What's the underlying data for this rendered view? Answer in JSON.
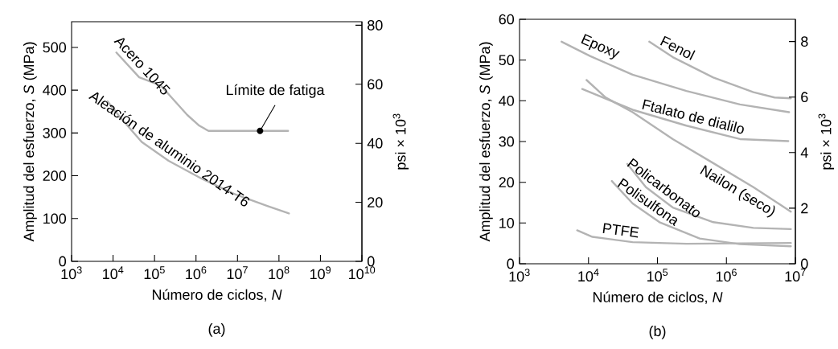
{
  "chart_data": [
    {
      "type": "line",
      "log": "x",
      "xlabel": "Número de ciclos, *N*",
      "ylabel": "Amplitud del esfuerzo, *S* (MPa)",
      "y2label": "psi × 10$^{3}$",
      "xlim": [
        1000,
        10000000000
      ],
      "xticks": [
        {
          "value": 1000,
          "label": "10$^{3}$"
        },
        {
          "value": 10000,
          "label": "10$^{4}$"
        },
        {
          "value": 100000,
          "label": "10$^{5}$"
        },
        {
          "value": 1000000,
          "label": "10$^{6}$"
        },
        {
          "value": 10000000,
          "label": "10$^{7}$"
        },
        {
          "value": 100000000,
          "label": "10$^{8}$"
        },
        {
          "value": 1000000000,
          "label": "10$^{9}$"
        },
        {
          "value": 10000000000,
          "label": "10$^{10}$"
        }
      ],
      "ylim": [
        0,
        560
      ],
      "yticks": [
        0,
        100,
        200,
        300,
        400,
        500
      ],
      "y2lim": [
        0,
        81.2
      ],
      "y2ticks": [
        0,
        20,
        40,
        60,
        80
      ],
      "series": [
        {
          "name": "Acero 1045",
          "color": "#b3b3b3",
          "x": [
            12000,
            42700,
            141000,
            617000,
            1200000,
            2000000,
            166000000
          ],
          "values": [
            488,
            430,
            411,
            342,
            317,
            305,
            305
          ]
        },
        {
          "name": "Aleación de aluminio 2014-T6",
          "color": "#b3b3b3",
          "x": [
            7360,
            15100,
            49000,
            219000,
            1320000,
            9100000,
            54000000,
            174000000
          ],
          "values": [
            374,
            336,
            279,
            235,
            194,
            156,
            129,
            112
          ]
        }
      ],
      "annotations": [
        {
          "text": "Límite de fatiga",
          "x": 35000000,
          "y": 305
        },
        "(a)"
      ]
    },
    {
      "type": "line",
      "log": "x",
      "xlabel": "Número de ciclos, *N*",
      "ylabel": "Amplitud del esfuerzo, *S* (MPa)",
      "y2label": "psi × 10$^{3}$",
      "xlim": [
        1000,
        10000000
      ],
      "xticks": [
        {
          "value": 1000,
          "label": "10$^{3}$"
        },
        {
          "value": 10000,
          "label": "10$^{4}$"
        },
        {
          "value": 100000,
          "label": "10$^{5}$"
        },
        {
          "value": 1000000,
          "label": "10$^{6}$"
        },
        {
          "value": 10000000,
          "label": "10$^{7}$"
        }
      ],
      "ylim": [
        0,
        60
      ],
      "yticks": [
        0,
        10,
        20,
        30,
        40,
        50,
        60
      ],
      "y2lim": [
        0,
        8.8
      ],
      "y2ticks": [
        0,
        2,
        4,
        6,
        8
      ],
      "series": [
        {
          "name": "Epoxy",
          "color": "#b3b3b3",
          "x": [
            4070,
            10500,
            43600,
            263000,
            1570000,
            8100000
          ],
          "values": [
            54.5,
            51.0,
            46.4,
            42.4,
            39.1,
            37.2
          ]
        },
        {
          "name": "Fenol",
          "color": "#b3b3b3",
          "x": [
            76000,
            167000,
            645000,
            2460000,
            5000000,
            8600000
          ],
          "values": [
            54.5,
            50.7,
            45.7,
            42.1,
            40.8,
            40.6
          ]
        },
        {
          "name": "Ftalato de dialilo",
          "color": "#b3b3b3",
          "x": [
            8100,
            43600,
            263000,
            1570000,
            7900000
          ],
          "values": [
            42.9,
            37.8,
            33.9,
            30.6,
            30.1
          ]
        },
        {
          "name": "Nailon (seco)",
          "color": "#b3b3b3",
          "x": [
            9360,
            17800,
            43600,
            167000,
            645000,
            2460000,
            8600000
          ],
          "values": [
            45.1,
            40.8,
            37.2,
            30.6,
            24.7,
            18.8,
            12.8
          ]
        },
        {
          "name": "Policarbonato",
          "color": "#b3b3b3",
          "x": [
            36500,
            68000,
            167000,
            645000,
            2460000,
            8600000
          ],
          "values": [
            24.5,
            18.8,
            13.8,
            10.2,
            8.8,
            8.5
          ]
        },
        {
          "name": "Polisulfona",
          "color": "#b3b3b3",
          "x": [
            21800,
            43600,
            107000,
            410000,
            1570000,
            8600000
          ],
          "values": [
            20.3,
            14.8,
            10.2,
            6.2,
            4.8,
            4.3
          ]
        },
        {
          "name": "PTFE",
          "color": "#b3b3b3",
          "x": [
            6850,
            11400,
            43600,
            263000,
            8600000
          ],
          "values": [
            8.2,
            6.6,
            5.3,
            4.9,
            5.1
          ]
        }
      ],
      "annotations": [
        "(b)"
      ]
    }
  ]
}
